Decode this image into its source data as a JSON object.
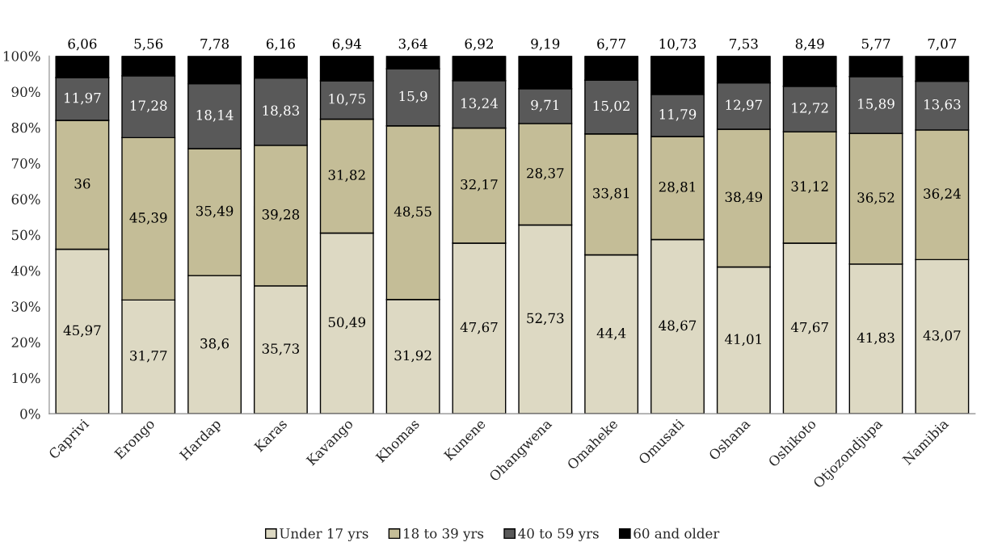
{
  "chart_data": {
    "type": "bar",
    "stacked": true,
    "categories": [
      "Caprivi",
      "Erongo",
      "Hardap",
      "Karas",
      "Kavango",
      "Khomas",
      "Kunene",
      "Ohangwena",
      "Omaheke",
      "Omusati",
      "Oshana",
      "Oshikoto",
      "Otjozondjupa",
      "Namibia"
    ],
    "series": [
      {
        "name": "Under 17 yrs",
        "color": "#ddd9c3",
        "values": [
          45.97,
          31.77,
          38.6,
          35.73,
          50.49,
          31.92,
          47.67,
          52.73,
          44.4,
          48.67,
          41.01,
          47.67,
          41.83,
          43.07
        ],
        "value_labels": [
          "45,97",
          "31,77",
          "38,6",
          "35,73",
          "50,49",
          "31,92",
          "47,67",
          "52,73",
          "44,4",
          "48,67",
          "41,01",
          "47,67",
          "41,83",
          "43,07"
        ]
      },
      {
        "name": "18 to 39 yrs",
        "color": "#c4bd97",
        "values": [
          36,
          45.39,
          35.49,
          39.28,
          31.82,
          48.55,
          32.17,
          28.37,
          33.81,
          28.81,
          38.49,
          31.12,
          36.52,
          36.24
        ],
        "value_labels": [
          "36",
          "45,39",
          "35,49",
          "39,28",
          "31,82",
          "48,55",
          "32,17",
          "28,37",
          "33,81",
          "28,81",
          "38,49",
          "31,12",
          "36,52",
          "36,24"
        ]
      },
      {
        "name": "40 to 59 yrs",
        "color": "#595959",
        "values": [
          11.97,
          17.28,
          18.14,
          18.83,
          10.75,
          15.9,
          13.24,
          9.71,
          15.02,
          11.79,
          12.97,
          12.72,
          15.89,
          13.63
        ],
        "value_labels": [
          "11,97",
          "17,28",
          "18,14",
          "18,83",
          "10,75",
          "15,9",
          "13,24",
          "9,71",
          "15,02",
          "11,79",
          "12,97",
          "12,72",
          "15,89",
          "13,63"
        ]
      },
      {
        "name": "60 and older",
        "color": "#000000",
        "values": [
          6.06,
          5.56,
          7.78,
          6.16,
          6.94,
          3.64,
          6.92,
          9.19,
          6.77,
          10.73,
          7.53,
          8.49,
          5.77,
          7.07
        ],
        "value_labels": [
          "6,06",
          "5,56",
          "7,78",
          "6,16",
          "6,94",
          "3,64",
          "6,92",
          "9,19",
          "6,77",
          "10,73",
          "7,53",
          "8,49",
          "5,77",
          "7,07"
        ]
      }
    ],
    "ylim": [
      0,
      100
    ],
    "yticks": [
      {
        "value": 0,
        "label": "0%"
      },
      {
        "value": 10,
        "label": "10%"
      },
      {
        "value": 20,
        "label": "20%"
      },
      {
        "value": 30,
        "label": "30%"
      },
      {
        "value": 40,
        "label": "40%"
      },
      {
        "value": 50,
        "label": "50%"
      },
      {
        "value": 60,
        "label": "60%"
      },
      {
        "value": 70,
        "label": "70%"
      },
      {
        "value": 80,
        "label": "80%"
      },
      {
        "value": 90,
        "label": "90%"
      },
      {
        "value": 100,
        "label": "100%"
      }
    ],
    "legend": "bottom",
    "grid": false
  }
}
